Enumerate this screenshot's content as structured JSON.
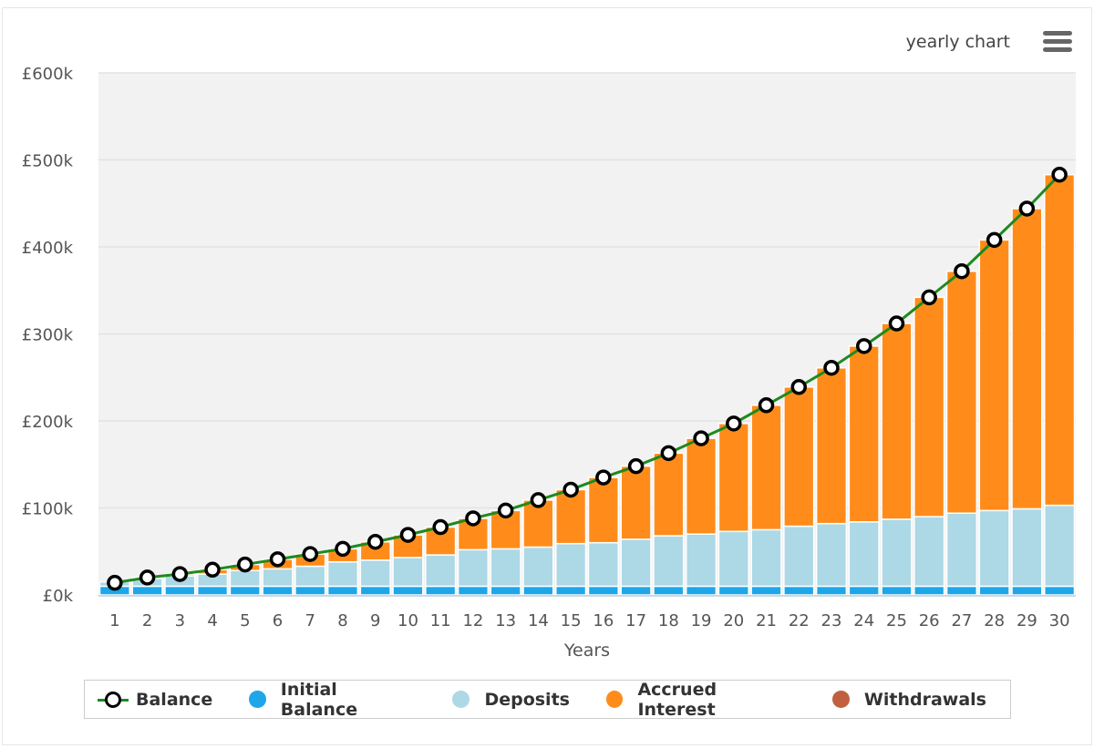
{
  "header": {
    "menu_label": "yearly chart"
  },
  "colors": {
    "balance_line": "#1e8a1e",
    "initial": "#1ea7e8",
    "deposits": "#add8e6",
    "interest": "#ff8c1a",
    "withdrawals": "#c0603f",
    "plot_bg": "#f2f2f2"
  },
  "chart_data": {
    "type": "bar",
    "stacked": true,
    "xlabel": "Years",
    "ylabel": "",
    "ylim": [
      0,
      600000
    ],
    "yticks": [
      0,
      100000,
      200000,
      300000,
      400000,
      500000,
      600000
    ],
    "ytick_labels": [
      "£0k",
      "£100k",
      "£200k",
      "£300k",
      "£400k",
      "£500k",
      "£600k"
    ],
    "categories": [
      "1",
      "2",
      "3",
      "4",
      "5",
      "6",
      "7",
      "8",
      "9",
      "10",
      "11",
      "12",
      "13",
      "14",
      "15",
      "16",
      "17",
      "18",
      "19",
      "20",
      "21",
      "22",
      "23",
      "24",
      "25",
      "26",
      "27",
      "28",
      "29",
      "30"
    ],
    "legend_position": "bottom",
    "series": [
      {
        "name": "Balance",
        "type": "line",
        "values": [
          14000,
          20000,
          24000,
          29000,
          35000,
          41000,
          47000,
          53000,
          61000,
          69000,
          78000,
          88000,
          97000,
          109000,
          121000,
          135000,
          148000,
          163000,
          180000,
          197000,
          218000,
          239000,
          261000,
          286000,
          312000,
          342000,
          372000,
          408000,
          444000,
          483000
        ]
      },
      {
        "name": "Initial Balance",
        "type": "bar",
        "values": [
          10000,
          10000,
          10000,
          10000,
          10000,
          10000,
          10000,
          10000,
          10000,
          10000,
          10000,
          10000,
          10000,
          10000,
          10000,
          10000,
          10000,
          10000,
          10000,
          10000,
          10000,
          10000,
          10000,
          10000,
          10000,
          10000,
          10000,
          10000,
          10000,
          10000
        ]
      },
      {
        "name": "Deposits",
        "type": "bar",
        "values": [
          5000,
          9000,
          12000,
          14000,
          18000,
          20000,
          23000,
          28000,
          30000,
          33000,
          36000,
          42000,
          43000,
          45000,
          49000,
          50000,
          54000,
          58000,
          60000,
          63000,
          65000,
          69000,
          72000,
          74000,
          77000,
          80000,
          84000,
          87000,
          89000,
          93000
        ]
      },
      {
        "name": "Accrued Interest",
        "type": "bar",
        "values": [
          0,
          1000,
          2000,
          5000,
          7000,
          11000,
          14000,
          15000,
          21000,
          26000,
          32000,
          36000,
          44000,
          54000,
          62000,
          75000,
          84000,
          95000,
          110000,
          124000,
          143000,
          160000,
          179000,
          202000,
          225000,
          252000,
          278000,
          311000,
          345000,
          380000
        ]
      },
      {
        "name": "Withdrawals",
        "type": "bar",
        "values": [
          0,
          0,
          0,
          0,
          0,
          0,
          0,
          0,
          0,
          0,
          0,
          0,
          0,
          0,
          0,
          0,
          0,
          0,
          0,
          0,
          0,
          0,
          0,
          0,
          0,
          0,
          0,
          0,
          0,
          0
        ]
      }
    ]
  }
}
